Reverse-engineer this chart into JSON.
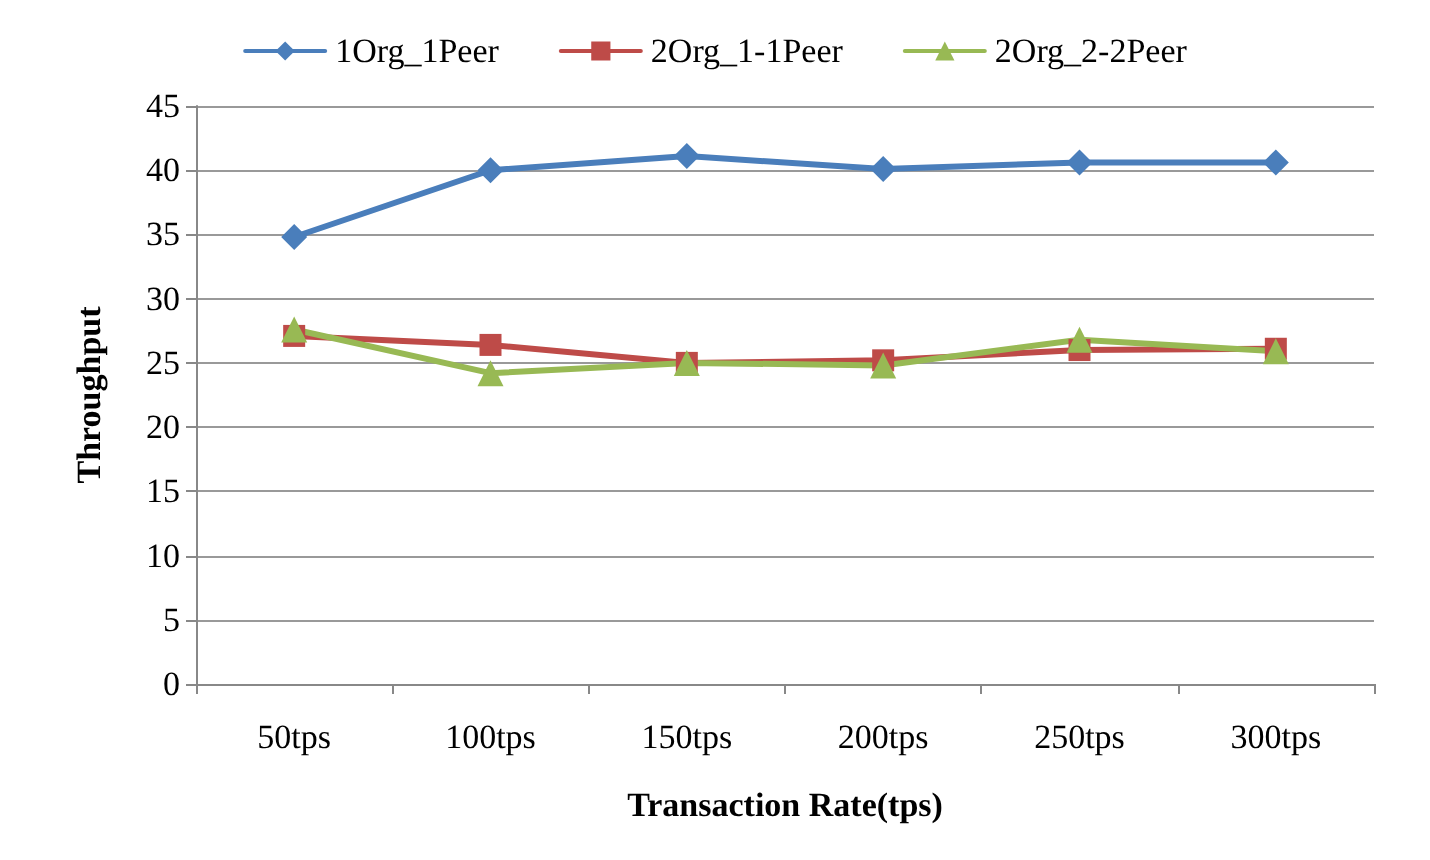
{
  "chart_data": {
    "type": "line",
    "xlabel": "Transaction Rate(tps)",
    "ylabel": "Throughput",
    "categories": [
      "50tps",
      "100tps",
      "150tps",
      "200tps",
      "250tps",
      "300tps"
    ],
    "series": [
      {
        "name": "1Org_1Peer",
        "color": "#4a7ebb",
        "marker": "diamond",
        "values": [
          34.8,
          40.0,
          41.1,
          40.1,
          40.6,
          40.6
        ]
      },
      {
        "name": "2Org_1-1Peer",
        "color": "#be4b48",
        "marker": "square",
        "values": [
          27.1,
          26.4,
          25.0,
          25.2,
          26.0,
          26.1
        ]
      },
      {
        "name": "2Org_2-2Peer",
        "color": "#98b954",
        "marker": "triangle",
        "values": [
          27.6,
          24.2,
          25.0,
          24.8,
          26.8,
          25.9
        ]
      }
    ],
    "ylim": [
      0,
      45
    ],
    "yticks": [
      0,
      5,
      10,
      15,
      20,
      25,
      30,
      35,
      40,
      45
    ],
    "grid": "y",
    "legend": "top",
    "line_style": "solid"
  }
}
